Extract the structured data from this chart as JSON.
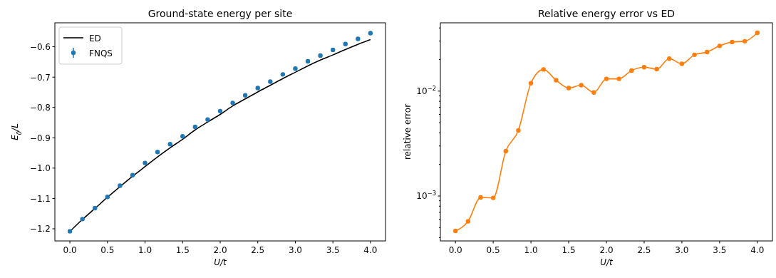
{
  "chart_data": [
    {
      "type": "line",
      "title": "Ground-state energy per site",
      "xlabel": "U/t",
      "ylabel": "E$_{0}$/L",
      "xlim": [
        -0.2,
        4.2
      ],
      "xticks": [
        {
          "value": 0,
          "label": "0.0"
        },
        {
          "value": 0.5,
          "label": "0.5"
        },
        {
          "value": 1,
          "label": "1.0"
        },
        {
          "value": 1.5,
          "label": "1.5"
        },
        {
          "value": 2,
          "label": "2.0"
        },
        {
          "value": 2.5,
          "label": "2.5"
        },
        {
          "value": 3,
          "label": "3.0"
        },
        {
          "value": 3.5,
          "label": "3.5"
        },
        {
          "value": 4,
          "label": "4.0"
        }
      ],
      "ylim": [
        -1.24,
        -0.521
      ],
      "yticks": [
        {
          "value": -1.2,
          "label": "−1.2"
        },
        {
          "value": -1.1,
          "label": "−1.1"
        },
        {
          "value": -1.0,
          "label": "−1.0"
        },
        {
          "value": -0.9,
          "label": "−0.9"
        },
        {
          "value": -0.8,
          "label": "−0.8"
        },
        {
          "value": -0.7,
          "label": "−0.7"
        },
        {
          "value": -0.6,
          "label": "−0.6"
        }
      ],
      "x": [
        0,
        0.1667,
        0.3333,
        0.5,
        0.6667,
        0.8333,
        1,
        1.1667,
        1.3333,
        1.5,
        1.6667,
        1.8333,
        2,
        2.1667,
        2.3333,
        2.5,
        2.6667,
        2.8333,
        3,
        3.1667,
        3.3333,
        3.5,
        3.6667,
        3.8333,
        4
      ],
      "legend": "top left",
      "grid": false,
      "series": [
        {
          "name": "ED",
          "color": "#000000",
          "marker": "none",
          "values": [
            -1.209,
            -1.169,
            -1.133,
            -1.096,
            -1.061,
            -1.027,
            -0.995,
            -0.963,
            -0.933,
            -0.905,
            -0.874,
            -0.848,
            -0.823,
            -0.795,
            -0.772,
            -0.749,
            -0.727,
            -0.705,
            -0.684,
            -0.663,
            -0.644,
            -0.627,
            -0.609,
            -0.592,
            -0.576
          ]
        },
        {
          "name": "FNQS",
          "type": "scatter",
          "color": "#1f77b4",
          "marker": "circle",
          "values": [
            -1.208,
            -1.168,
            -1.132,
            -1.095,
            -1.058,
            -1.023,
            -0.983,
            -0.947,
            -0.921,
            -0.895,
            -0.864,
            -0.84,
            -0.812,
            -0.785,
            -0.76,
            -0.736,
            -0.715,
            -0.691,
            -0.672,
            -0.648,
            -0.629,
            -0.61,
            -0.591,
            -0.574,
            -0.555
          ]
        }
      ]
    },
    {
      "type": "line",
      "title": "Relative energy error vs ED",
      "xlabel": "U/t",
      "ylabel": "relative error",
      "log": "y",
      "xlim": [
        -0.2,
        4.2
      ],
      "xticks": [
        {
          "value": 0,
          "label": "0.0"
        },
        {
          "value": 0.5,
          "label": "0.5"
        },
        {
          "value": 1,
          "label": "1.0"
        },
        {
          "value": 1.5,
          "label": "1.5"
        },
        {
          "value": 2,
          "label": "2.0"
        },
        {
          "value": 2.5,
          "label": "2.5"
        },
        {
          "value": 3,
          "label": "3.0"
        },
        {
          "value": 3.5,
          "label": "3.5"
        },
        {
          "value": 4,
          "label": "4.0"
        }
      ],
      "ylim": [
        0.000373,
        0.0448
      ],
      "yticks": [
        {
          "value": 0.0004,
          "label": null
        },
        {
          "value": 0.0005,
          "label": null
        },
        {
          "value": 0.0006,
          "label": null
        },
        {
          "value": 0.0007,
          "label": null
        },
        {
          "value": 0.0008,
          "label": null
        },
        {
          "value": 0.0009,
          "label": null
        },
        {
          "value": 0.001,
          "label": "10$^{−3}$"
        },
        {
          "value": 0.002,
          "label": null
        },
        {
          "value": 0.003,
          "label": null
        },
        {
          "value": 0.004,
          "label": null
        },
        {
          "value": 0.005,
          "label": null
        },
        {
          "value": 0.006,
          "label": null
        },
        {
          "value": 0.007,
          "label": null
        },
        {
          "value": 0.008,
          "label": null
        },
        {
          "value": 0.009,
          "label": null
        },
        {
          "value": 0.01,
          "label": "10$^{−2}$"
        },
        {
          "value": 0.02,
          "label": null
        },
        {
          "value": 0.03,
          "label": null
        },
        {
          "value": 0.04,
          "label": null
        }
      ],
      "x": [
        0,
        0.1667,
        0.3333,
        0.5,
        0.6667,
        0.8333,
        1,
        1.1667,
        1.3333,
        1.5,
        1.6667,
        1.8333,
        2,
        2.1667,
        2.3333,
        2.5,
        2.6667,
        2.8333,
        3,
        3.1667,
        3.3333,
        3.5,
        3.6667,
        3.8333,
        4
      ],
      "grid": false,
      "legend": false,
      "series": [
        {
          "color": "#ff7f0e",
          "marker": "circle",
          "values": [
            0.000465,
            0.000573,
            0.00097,
            0.00096,
            0.00268,
            0.00422,
            0.0119,
            0.0161,
            0.0127,
            0.0107,
            0.0114,
            0.0097,
            0.0131,
            0.0131,
            0.0157,
            0.0169,
            0.0162,
            0.0204,
            0.0182,
            0.0222,
            0.0236,
            0.027,
            0.0294,
            0.0299,
            0.036
          ]
        }
      ]
    }
  ]
}
